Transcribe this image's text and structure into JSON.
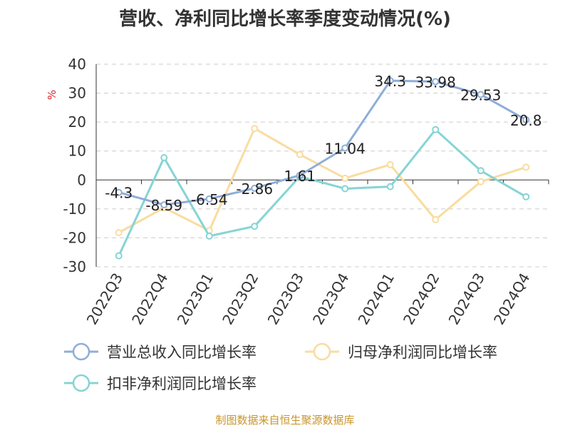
{
  "chart_data": {
    "type": "line",
    "title": "营收、净利同比增长率季度变动情况(%)",
    "ylabel": "%",
    "xlabel": "",
    "categories": [
      "2022Q3",
      "2022Q4",
      "2023Q1",
      "2023Q2",
      "2023Q3",
      "2023Q4",
      "2024Q1",
      "2024Q2",
      "2024Q3",
      "2024Q4"
    ],
    "ylim": [
      -30,
      40
    ],
    "yticks": [
      -30,
      -20,
      -10,
      0,
      10,
      20,
      30,
      40
    ],
    "grid": true,
    "legend_position": "bottom",
    "series": [
      {
        "name": "营业总收入同比增长率",
        "color": "#8fadd8",
        "values": [
          -4.3,
          -8.59,
          -6.54,
          -2.86,
          1.61,
          11.04,
          34.3,
          33.98,
          29.53,
          20.8
        ],
        "labels": [
          "-4.3",
          "-8.59",
          "-6.54",
          "-2.86",
          "1.61",
          "11.04",
          "34.3",
          "33.98",
          "29.53",
          "20.8"
        ]
      },
      {
        "name": "归母净利润同比增长率",
        "color": "#f9dca0",
        "values": [
          -18.2,
          -9.6,
          -17.5,
          17.8,
          8.8,
          0.6,
          5.3,
          -13.7,
          -0.6,
          4.4
        ]
      },
      {
        "name": "扣非净利润同比增长率",
        "color": "#86d4d4",
        "values": [
          -26.2,
          7.7,
          -19.4,
          -16.0,
          1.2,
          -3.0,
          -2.3,
          17.4,
          3.2,
          -5.8
        ]
      }
    ]
  },
  "footer": {
    "source": "制图数据来自恒生聚源数据库"
  }
}
